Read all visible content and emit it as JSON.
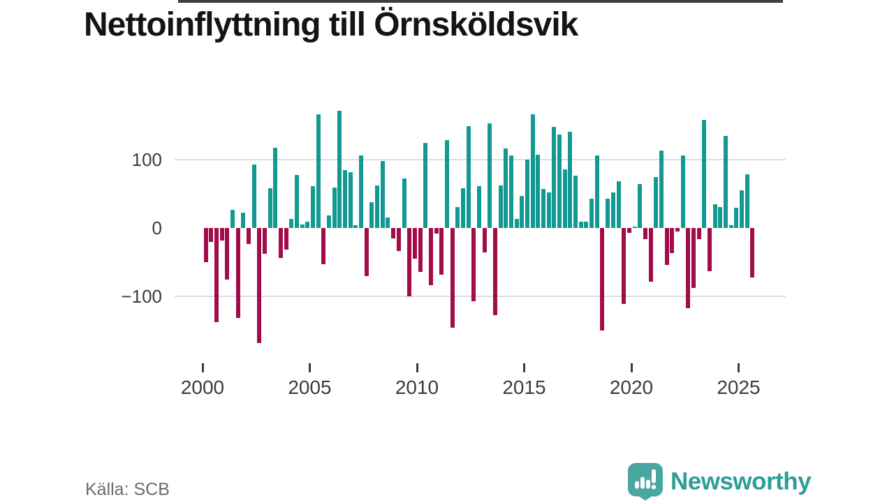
{
  "title": "Nettoinflyttning till Örnsköldsvik",
  "source": "Källa: SCB",
  "brand": {
    "name": "Newsworthy",
    "wordmark_color": "#2d9e97",
    "badge_color": "#4aa79f"
  },
  "chart_data": {
    "type": "bar",
    "title": "Nettoinflyttning till Örnsköldsvik",
    "xlabel": "",
    "ylabel": "",
    "x_unit": "quarter",
    "start": "2000-Q1",
    "end": "2025-Q3",
    "x_ticks": [
      2000,
      2005,
      2010,
      2015,
      2020,
      2025
    ],
    "y_ticks": [
      -100,
      0,
      100
    ],
    "ylim": [
      -185,
      185
    ],
    "grid": "horizontal",
    "legend": "none",
    "positive_color": "#129a92",
    "negative_color": "#a30c4b",
    "values": [
      -50,
      -20,
      -138,
      -18,
      -75,
      27,
      -132,
      22,
      -23,
      93,
      -168,
      -38,
      58,
      117,
      -44,
      -32,
      13,
      78,
      5,
      9,
      61,
      166,
      -53,
      18,
      59,
      171,
      85,
      82,
      4,
      106,
      -70,
      38,
      62,
      98,
      15,
      -15,
      -34,
      72,
      -100,
      -45,
      -64,
      124,
      -84,
      -8,
      -68,
      129,
      -146,
      31,
      58,
      149,
      -107,
      61,
      -36,
      153,
      -128,
      62,
      116,
      106,
      13,
      47,
      100,
      166,
      107,
      57,
      52,
      148,
      137,
      86,
      141,
      77,
      9,
      9,
      43,
      106,
      -150,
      43,
      52,
      68,
      -111,
      -7,
      2,
      64,
      -16,
      -79,
      75,
      113,
      -54,
      -37,
      -5,
      106,
      -117,
      -88,
      -16,
      158,
      -63,
      35,
      31,
      135,
      4,
      30,
      55,
      79,
      -72
    ]
  }
}
